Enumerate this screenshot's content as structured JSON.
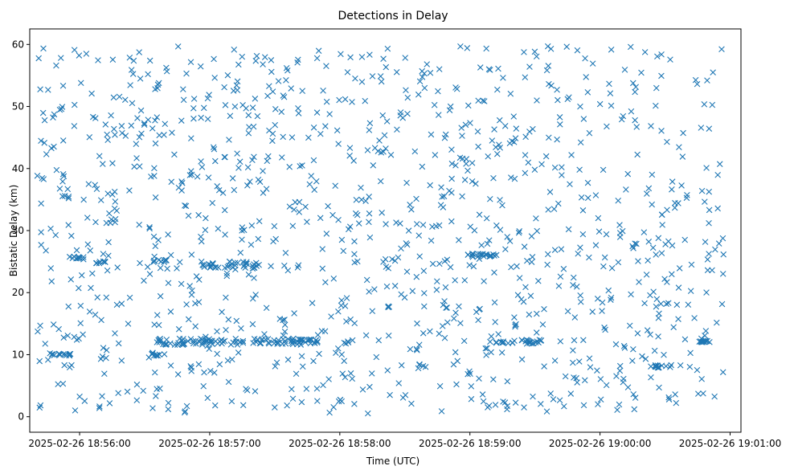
{
  "chart_data": {
    "type": "scatter",
    "title": "Detections in Delay",
    "xlabel": "Time (UTC)",
    "ylabel": "Bistatic Delay (km)",
    "marker": "x",
    "marker_color": "#1f77b4",
    "x_unit": "seconds since 2025-02-26 18:56:00",
    "xlim": [
      -23,
      305
    ],
    "ylim": [
      -2.5,
      62.5
    ],
    "x_ticks": [
      {
        "value": 0,
        "label": "2025-02-26 18:56:00"
      },
      {
        "value": 60,
        "label": "2025-02-26 18:57:00"
      },
      {
        "value": 120,
        "label": "2025-02-26 18:58:00"
      },
      {
        "value": 180,
        "label": "2025-02-26 18:59:00"
      },
      {
        "value": 240,
        "label": "2025-02-26 19:00:00"
      },
      {
        "value": 300,
        "label": "2025-02-26 19:01:00"
      }
    ],
    "y_ticks": [
      0,
      10,
      20,
      30,
      40,
      50,
      60
    ],
    "points_note": "Approximately 1500 detections; visually dense random field spanning t = -20 s to 297 s and delay 0.5–59.8 km, with clustered tracks listed below.",
    "clusters": [
      {
        "t": [
          -13,
          -4
        ],
        "delay": [
          9.8,
          10.2
        ]
      },
      {
        "t": [
          -5,
          2
        ],
        "delay": [
          25.5,
          25.8
        ]
      },
      {
        "t": [
          7,
          12
        ],
        "delay": [
          24.7,
          25.1
        ]
      },
      {
        "t": [
          32,
          38
        ],
        "delay": [
          9.8,
          10.3
        ]
      },
      {
        "t": [
          35,
          58
        ],
        "delay": [
          11.5,
          12.6
        ]
      },
      {
        "t": [
          33,
          40
        ],
        "delay": [
          24.9,
          25.3
        ]
      },
      {
        "t": [
          56,
          83
        ],
        "delay": [
          24.0,
          25.0
        ]
      },
      {
        "t": [
          58,
          112
        ],
        "delay": [
          11.6,
          12.6
        ]
      },
      {
        "t": [
          121,
          124
        ],
        "delay": [
          11.7,
          12.2
        ]
      },
      {
        "t": [
          179,
          193
        ],
        "delay": [
          25.8,
          26.3
        ]
      },
      {
        "t": [
          192,
          213
        ],
        "delay": [
          11.7,
          12.4
        ]
      },
      {
        "t": [
          263,
          273
        ],
        "delay": [
          7.9,
          8.4
        ]
      },
      {
        "t": [
          283,
          292
        ],
        "delay": [
          12.0,
          12.3
        ]
      }
    ],
    "seed": 20250226
  }
}
